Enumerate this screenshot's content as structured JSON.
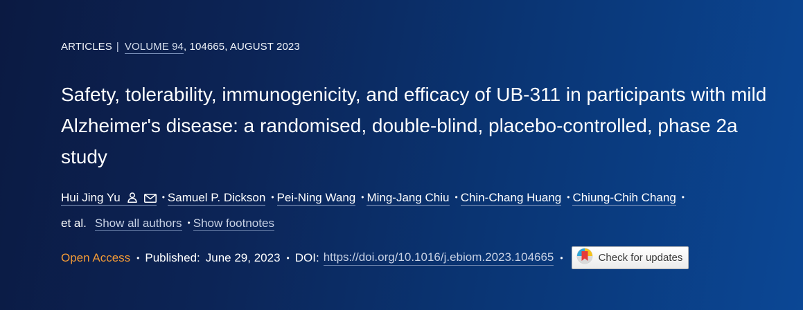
{
  "header": {
    "section": "ARTICLES",
    "separator": "|",
    "volume": "VOLUME 94",
    "issue_info": ", 104665, AUGUST 2023"
  },
  "title": "Safety, tolerability, immunogenicity, and efficacy of UB-311 in participants with mild Alzheimer's disease: a randomised, double-blind, placebo-controlled, phase 2a study",
  "authors": {
    "first": "Hui Jing Yu",
    "others": [
      "Samuel P. Dickson",
      "Pei-Ning Wang",
      "Ming-Jang Chiu",
      "Chin-Chang Huang",
      "Chiung-Chih Chang"
    ],
    "etal": "et al.",
    "show_all_label": "Show all authors",
    "show_footnotes_label": "Show footnotes",
    "bullet": "•"
  },
  "publication": {
    "access": "Open Access",
    "published_label": "Published:",
    "published_date": "June 29, 2023",
    "doi_label": "DOI:",
    "doi_link": "https://doi.org/10.1016/j.ebiom.2023.104665",
    "check_updates_label": "Check for updates"
  },
  "colors": {
    "background_start": "#0b1a42",
    "background_end": "#0b4795",
    "accent_open_access": "#f39a36",
    "link_muted": "#c7d1e4"
  },
  "icons": [
    "person-icon",
    "mail-icon",
    "crossmark-icon"
  ]
}
